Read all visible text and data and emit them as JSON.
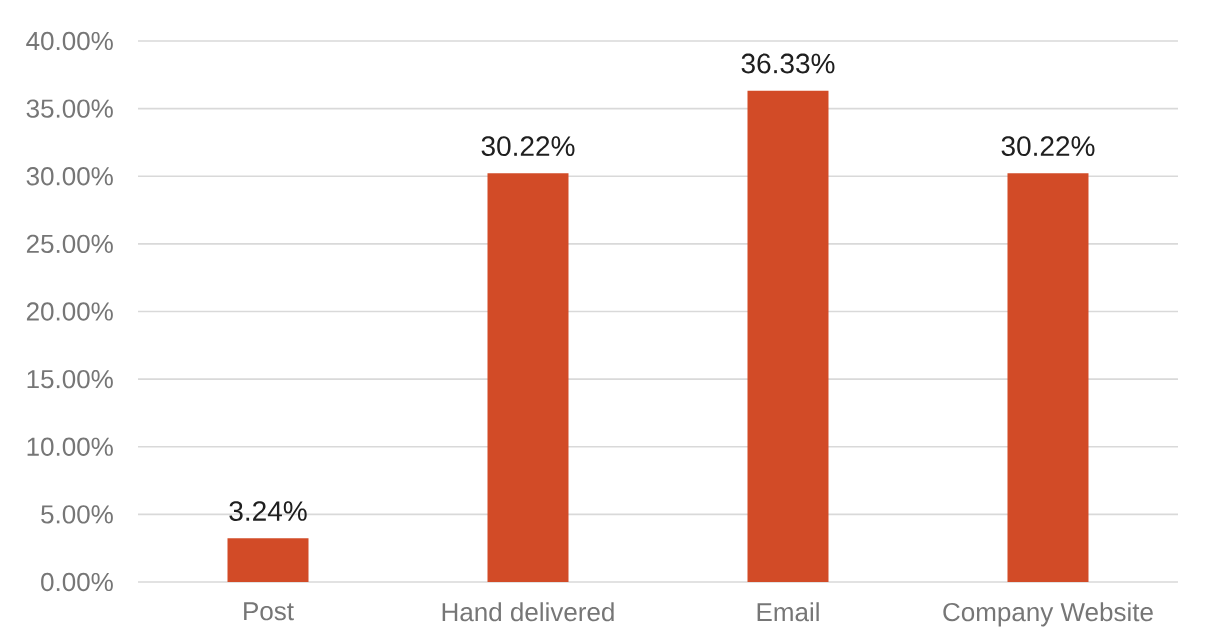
{
  "chart_data": {
    "type": "bar",
    "categories": [
      "Post",
      "Hand delivered",
      "Email",
      "Company Website"
    ],
    "values": [
      3.24,
      30.22,
      36.33,
      30.22
    ],
    "value_labels": [
      "3.24%",
      "30.22%",
      "36.33%",
      "30.22%"
    ],
    "color": "#d24b27",
    "ylim": [
      0,
      40
    ],
    "yticks": [
      {
        "value": 0,
        "label": "0.00%"
      },
      {
        "value": 5,
        "label": "5.00%"
      },
      {
        "value": 10,
        "label": "10.00%"
      },
      {
        "value": 15,
        "label": "15.00%"
      },
      {
        "value": 20,
        "label": "20.00%"
      },
      {
        "value": 25,
        "label": "25.00%"
      },
      {
        "value": 30,
        "label": "30.00%"
      },
      {
        "value": 35,
        "label": "35.00%"
      },
      {
        "value": 40,
        "label": "40.00%"
      }
    ],
    "grid": "y"
  }
}
